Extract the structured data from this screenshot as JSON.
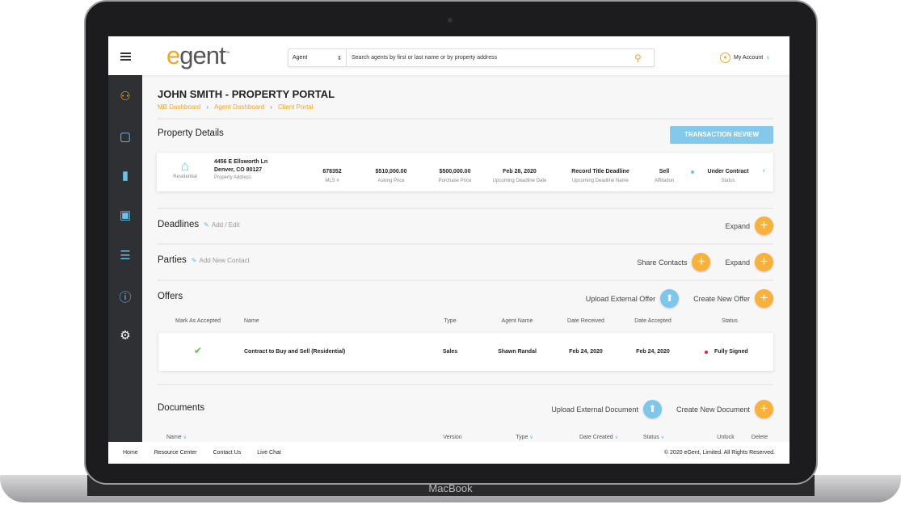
{
  "device": {
    "label": "MacBook"
  },
  "header": {
    "logo": {
      "e": "e",
      "rest": "gent",
      "tm": "™"
    },
    "search": {
      "select": "Agent",
      "placeholder": "Search agents by first or last name or by property address"
    },
    "account": "My Account"
  },
  "sidebar": {
    "items": [
      {
        "icon": "people-icon"
      },
      {
        "icon": "chat-icon"
      },
      {
        "icon": "chart-icon"
      },
      {
        "icon": "calendar-icon"
      },
      {
        "icon": "list-icon"
      },
      {
        "icon": "help-icon"
      },
      {
        "icon": "gear-icon"
      }
    ]
  },
  "page": {
    "title": "JOHN SMITH - PROPERTY PORTAL",
    "breadcrumb": [
      "MB Dashboard",
      "Agent Dashboard",
      "Client Portal"
    ]
  },
  "property": {
    "heading": "Property Details",
    "button": "TRANSACTION REVIEW",
    "type": "Residential",
    "address1": "4456 E Ellsworth Ln",
    "address2": "Denver, CO 80127",
    "address_label": "Property Address",
    "fields": [
      {
        "value": "678352",
        "label": "MLS #"
      },
      {
        "value": "$510,000.00",
        "label": "Asking Price"
      },
      {
        "value": "$500,000.00",
        "label": "Purchase Price"
      },
      {
        "value": "Feb 28, 2020",
        "label": "Upcoming Deadline Date"
      },
      {
        "value": "Record Title Deadline",
        "label": "Upcoming Deadline Name"
      },
      {
        "value": "Sell",
        "label": "Affiliation"
      },
      {
        "value": "Under Contract",
        "label": "Status"
      }
    ]
  },
  "deadlines": {
    "heading": "Deadlines",
    "edit": "Add / Edit",
    "expand": "Expand"
  },
  "parties": {
    "heading": "Parties",
    "edit": "Add New Contact",
    "share": "Share Contacts",
    "expand": "Expand"
  },
  "offers": {
    "heading": "Offers",
    "upload": "Upload External Offer",
    "create": "Create New Offer",
    "columns": [
      "Mark As Accepted",
      "Name",
      "Type",
      "Agent Name",
      "Date Received",
      "Date Accepted",
      "Status"
    ],
    "rows": [
      {
        "name": "Contract to Buy and Sell (Residential)",
        "type": "Sales",
        "agent": "Shawn Randal",
        "received": "Feb 24, 2020",
        "accepted": "Feb 24, 2020",
        "status": "Fully Signed",
        "accepted_mark": true
      }
    ]
  },
  "documents": {
    "heading": "Documents",
    "upload": "Upload External Document",
    "create": "Create New Document",
    "columns": [
      "Name",
      "Version",
      "Type",
      "Date Created",
      "Status",
      "Unlock",
      "Delete"
    ]
  },
  "footer": {
    "links": [
      "Home",
      "Resource Center",
      "Contact Us",
      "Live Chat"
    ],
    "copyright": "© 2020 eGent, Limited.  All Rights Reserved."
  },
  "colors": {
    "accent": "#f5a623",
    "blue": "#84c9ec",
    "sidebar": "#2f3033",
    "status_dot": "#e8262a"
  }
}
